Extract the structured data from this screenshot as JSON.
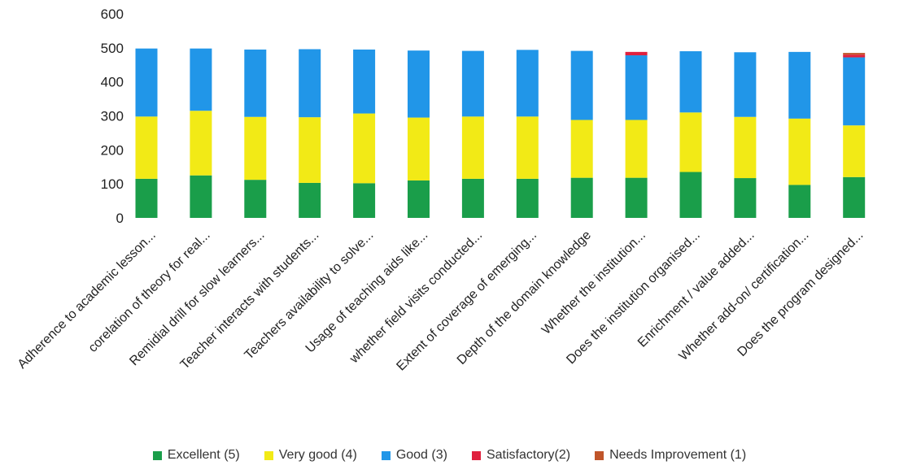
{
  "chart_data": {
    "type": "bar",
    "stacked": true,
    "categories": [
      "Adherence to academic lesson...",
      "corelation of theory for real...",
      "Remidial drill for slow learners...",
      "Teacher interacts with students...",
      "Teachers availability to solve...",
      "Usage of teaching aids like...",
      "whether field visits conducted...",
      "Extent of coverage of emerging...",
      "Depth of the domain knowledge",
      "Whether the institution...",
      "Does the institution organised...",
      "Enrichment / value added...",
      "Whether add-on/ certification...",
      "Does the program designed..."
    ],
    "series": [
      {
        "name": "Excellent (5)",
        "color": "#1a9e4a",
        "values": [
          115,
          125,
          112,
          103,
          102,
          110,
          115,
          115,
          118,
          118,
          135,
          117,
          97,
          120
        ]
      },
      {
        "name": "Very good (4)",
        "color": "#f2ea16",
        "values": [
          183,
          190,
          185,
          193,
          205,
          185,
          183,
          183,
          170,
          170,
          175,
          180,
          195,
          152
        ]
      },
      {
        "name": "Good (3)",
        "color": "#2196e8",
        "values": [
          200,
          183,
          198,
          200,
          188,
          197,
          193,
          196,
          203,
          190,
          180,
          190,
          196,
          200
        ]
      },
      {
        "name": "Satisfactory(2)",
        "color": "#e0213e",
        "values": [
          0,
          0,
          0,
          0,
          0,
          0,
          0,
          0,
          0,
          10,
          0,
          0,
          0,
          8
        ]
      },
      {
        "name": "Needs Improvement (1)",
        "color": "#c0552a",
        "values": [
          0,
          0,
          0,
          0,
          0,
          0,
          0,
          0,
          0,
          0,
          0,
          0,
          0,
          5
        ]
      }
    ],
    "yticks": [
      0,
      100,
      200,
      300,
      400,
      500,
      600
    ],
    "ylim": [
      0,
      600
    ],
    "grid": false,
    "legend": "bottom"
  }
}
